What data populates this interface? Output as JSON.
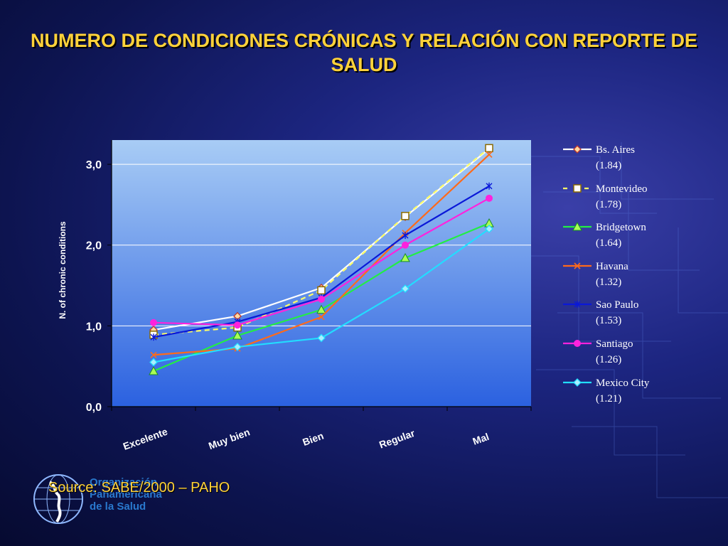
{
  "slide": {
    "title": "NUMERO DE CONDICIONES CRÓNICAS Y RELACIÓN CON REPORTE DE SALUD",
    "source": "Source: SABE/2000 – PAHO",
    "org_lines": [
      "Organización",
      "Panamericana",
      "de la Salud"
    ]
  },
  "chart_data": {
    "type": "line",
    "title": "",
    "xlabel": "",
    "ylabel": "N. of  chronic conditions",
    "categories": [
      "Excelente",
      "Muy bien",
      "Bien",
      "Regular",
      "Mal"
    ],
    "ylim": [
      0,
      3.3
    ],
    "yticks": [
      "0,0",
      "1,0",
      "2,0",
      "3,0"
    ],
    "ytick_values": [
      0,
      1,
      2,
      3
    ],
    "grid": true,
    "legend_position": "right",
    "plot_background": [
      "#a8ccf5",
      "#2b61e0"
    ],
    "series": [
      {
        "name": "Bs. Aires (1.84)",
        "legend": [
          "Bs. Aires",
          "(1.84)"
        ],
        "color": "#ffffff",
        "marker": "diamond",
        "dash": "solid",
        "marker_fill": "#ffd9a0",
        "values": [
          0.95,
          1.12,
          1.47,
          2.35,
          3.19
        ]
      },
      {
        "name": "Montevideo (1.78)",
        "legend": [
          "Montevideo",
          "(1.78)"
        ],
        "color": "#ffff66",
        "marker": "square",
        "dash": "dashed",
        "marker_fill": "#ffffff",
        "values": [
          0.89,
          0.98,
          1.44,
          2.36,
          3.2
        ]
      },
      {
        "name": "Bridgetown (1.64)",
        "legend": [
          "Bridgetown",
          "(1.64)"
        ],
        "color": "#22ee44",
        "marker": "triangle",
        "dash": "solid",
        "marker_fill": "#aaff55",
        "values": [
          0.44,
          0.88,
          1.2,
          1.84,
          2.27
        ]
      },
      {
        "name": "Havana (1.32)",
        "legend": [
          "Havana",
          "(1.32)"
        ],
        "color": "#ff6a1a",
        "marker": "x",
        "dash": "solid",
        "marker_fill": "#ff6a1a",
        "values": [
          0.64,
          0.72,
          1.11,
          2.15,
          3.12
        ]
      },
      {
        "name": "Sao Paulo (1.53)",
        "legend": [
          "Sao Paulo",
          "(1.53)"
        ],
        "color": "#0a18d8",
        "marker": "star",
        "dash": "solid",
        "marker_fill": "#0a18d8",
        "values": [
          0.86,
          1.05,
          1.35,
          2.12,
          2.73
        ]
      },
      {
        "name": "Santiago (1.26)",
        "legend": [
          "Santiago",
          "(1.26)"
        ],
        "color": "#ff22dd",
        "marker": "circle",
        "dash": "solid",
        "marker_fill": "#ff22dd",
        "values": [
          1.04,
          1.01,
          1.33,
          2.0,
          2.58
        ]
      },
      {
        "name": "Mexico City (1.21)",
        "legend": [
          "Mexico City",
          "(1.21)"
        ],
        "color": "#22ddff",
        "marker": "diamond",
        "dash": "solid",
        "marker_fill": "#aaeeff",
        "values": [
          0.55,
          0.74,
          0.85,
          1.46,
          2.2
        ]
      }
    ]
  }
}
